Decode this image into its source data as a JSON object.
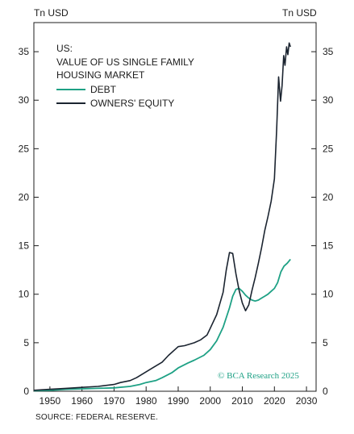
{
  "chart_data": {
    "type": "line",
    "title": "US:",
    "subtitle": [
      "VALUE OF US SINGLE FAMILY",
      "HOUSING MARKET"
    ],
    "ylabel_left": "Tn USD",
    "ylabel_right": "Tn USD",
    "xlim": [
      1945,
      2033
    ],
    "ylim": [
      0,
      38
    ],
    "x_ticks": [
      1950,
      1960,
      1970,
      1980,
      1990,
      2000,
      2010,
      2020,
      2030
    ],
    "y_ticks": [
      0,
      5,
      10,
      15,
      20,
      25,
      30,
      35
    ],
    "grid": false,
    "legend_position": "top-left",
    "series": [
      {
        "name": "DEBT",
        "color": "#1ea185",
        "x": [
          1945,
          1950,
          1955,
          1960,
          1965,
          1970,
          1975,
          1978,
          1980,
          1983,
          1985,
          1988,
          1990,
          1993,
          1995,
          1998,
          2000,
          2002,
          2004,
          2006,
          2007,
          2008,
          2009,
          2010,
          2011,
          2012,
          2013,
          2014,
          2015,
          2016,
          2017,
          2018,
          2019,
          2020,
          2021,
          2022,
          2023,
          2024,
          2025
        ],
        "values": [
          0.05,
          0.1,
          0.2,
          0.25,
          0.3,
          0.35,
          0.5,
          0.7,
          0.9,
          1.1,
          1.4,
          1.9,
          2.4,
          2.9,
          3.2,
          3.7,
          4.3,
          5.2,
          6.6,
          8.6,
          9.8,
          10.5,
          10.6,
          10.3,
          9.9,
          9.6,
          9.4,
          9.3,
          9.4,
          9.6,
          9.8,
          10.0,
          10.3,
          10.6,
          11.2,
          12.3,
          12.9,
          13.2,
          13.6
        ]
      },
      {
        "name": "OWNERS' EQUITY",
        "color": "#1b2430",
        "x": [
          1945,
          1950,
          1955,
          1960,
          1965,
          1970,
          1972,
          1975,
          1977,
          1980,
          1982,
          1985,
          1987,
          1990,
          1992,
          1995,
          1997,
          1999,
          2000,
          2002,
          2004,
          2005,
          2006,
          2007,
          2008,
          2009,
          2010,
          2011,
          2012,
          2013,
          2014,
          2015,
          2016,
          2017,
          2018,
          2019,
          2020,
          2020.7,
          2021.3,
          2021.9,
          2022.4,
          2022.9,
          2023.3,
          2023.8,
          2024.2,
          2024.6,
          2025
        ],
        "values": [
          0.1,
          0.2,
          0.3,
          0.4,
          0.5,
          0.7,
          0.9,
          1.1,
          1.4,
          2.0,
          2.4,
          3.0,
          3.7,
          4.6,
          4.7,
          5.0,
          5.3,
          5.8,
          6.5,
          7.9,
          10.2,
          12.5,
          14.3,
          14.2,
          12.1,
          10.4,
          9.1,
          8.3,
          8.9,
          10.4,
          11.7,
          13.2,
          14.8,
          16.6,
          18.0,
          19.6,
          21.9,
          27.0,
          32.4,
          29.9,
          31.5,
          34.6,
          33.6,
          35.5,
          34.7,
          35.9,
          35.5
        ]
      }
    ]
  },
  "watermark": "© BCA Research 2025",
  "source": "SOURCE: FEDERAL RESERVE."
}
